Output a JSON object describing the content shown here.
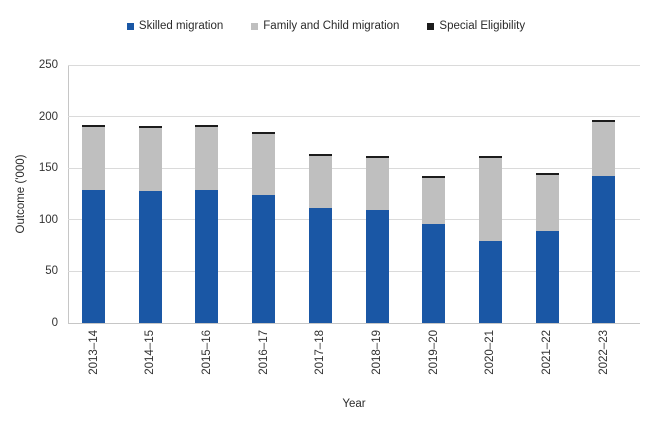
{
  "chart_data": {
    "type": "bar",
    "stacked": true,
    "title": "",
    "xlabel": "Year",
    "ylabel": "Outcome ('000)",
    "ylim": [
      0,
      250
    ],
    "yticks": [
      0,
      50,
      100,
      150,
      200,
      250
    ],
    "grid": true,
    "legend_position": "top",
    "categories": [
      "2013–14",
      "2014–15",
      "2015–16",
      "2016–17",
      "2017–18",
      "2018–19",
      "2019–20",
      "2020–21",
      "2021–22",
      "2022–23"
    ],
    "series": [
      {
        "name": "Skilled migration",
        "color": "#1a57a5",
        "values": [
          128.6,
          127.8,
          128.6,
          123.6,
          111.1,
          109.7,
          95.8,
          79.6,
          89.1,
          142.3
        ]
      },
      {
        "name": "Family and Child migration",
        "color": "#bfbfbf",
        "values": [
          61.7,
          61.1,
          60.9,
          59.6,
          51.1,
          50.5,
          44.4,
          80.4,
          54.3,
          52.5
        ]
      },
      {
        "name": "Special Eligibility",
        "color": "#1c1c1c",
        "values": [
          0.3,
          0.2,
          0.3,
          0.4,
          0.2,
          0.1,
          0.1,
          0.1,
          0.2,
          0.3
        ]
      }
    ],
    "totals": [
      190.6,
      189.1,
      189.8,
      183.6,
      162.4,
      160.3,
      140.3,
      160.1,
      143.6,
      195.1
    ]
  },
  "colors": {
    "background": "#ffffff",
    "gridline": "#dadada",
    "axis_line": "#c6c6c6",
    "tick_text": "#333333",
    "label_text": "#2b2b2b"
  }
}
